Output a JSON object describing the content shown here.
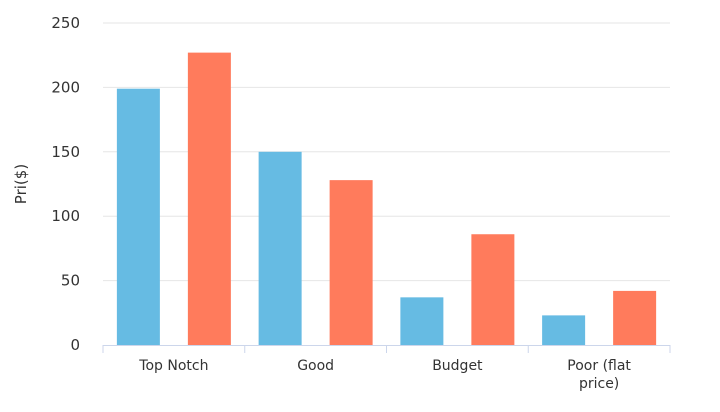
{
  "chart_data": {
    "type": "bar",
    "title": "",
    "xlabel": "",
    "ylabel": "Pri($)",
    "ylim": [
      0,
      250
    ],
    "yticks": [
      0,
      50,
      100,
      150,
      200,
      250
    ],
    "grid": true,
    "categories": [
      "Top Notch",
      "Good",
      "Budget",
      "Poor (flat price)"
    ],
    "category_lines": [
      [
        "Top Notch"
      ],
      [
        "Good"
      ],
      [
        "Budget"
      ],
      [
        "Poor (flat",
        "price)"
      ]
    ],
    "series": [
      {
        "color": "#66bbe3",
        "values": [
          199,
          150,
          37,
          23
        ]
      },
      {
        "color": "#ff7b5c",
        "values": [
          227,
          128,
          86,
          42
        ]
      }
    ]
  }
}
